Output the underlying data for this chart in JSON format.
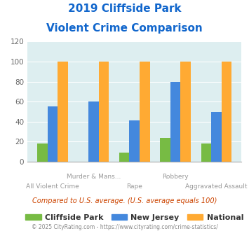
{
  "title_line1": "2019 Cliffside Park",
  "title_line2": "Violent Crime Comparison",
  "categories": [
    "All Violent Crime",
    "Murder & Mans...",
    "Rape",
    "Robbery",
    "Aggravated Assault"
  ],
  "cliffside_park": [
    18,
    0,
    9,
    24,
    18
  ],
  "new_jersey": [
    55,
    60,
    41,
    80,
    50
  ],
  "national": [
    100,
    100,
    100,
    100,
    100
  ],
  "color_cliffside": "#77bb44",
  "color_nj": "#4488dd",
  "color_national": "#ffaa33",
  "ylim": [
    0,
    120
  ],
  "yticks": [
    0,
    20,
    40,
    60,
    80,
    100,
    120
  ],
  "bg_color": "#ddeef0",
  "title_color": "#1166cc",
  "subtitle": "Compared to U.S. average. (U.S. average equals 100)",
  "subtitle_color": "#cc4400",
  "footer": "© 2025 CityRating.com - https://www.cityrating.com/crime-statistics/",
  "footer_color": "#888888",
  "legend_labels": [
    "Cliffside Park",
    "New Jersey",
    "National"
  ],
  "cat_labels_top": [
    "",
    "Murder & Mans...",
    "",
    "Robbery",
    ""
  ],
  "cat_labels_bot": [
    "All Violent Crime",
    "",
    "Rape",
    "",
    "Aggravated Assault"
  ],
  "bar_width": 0.25
}
